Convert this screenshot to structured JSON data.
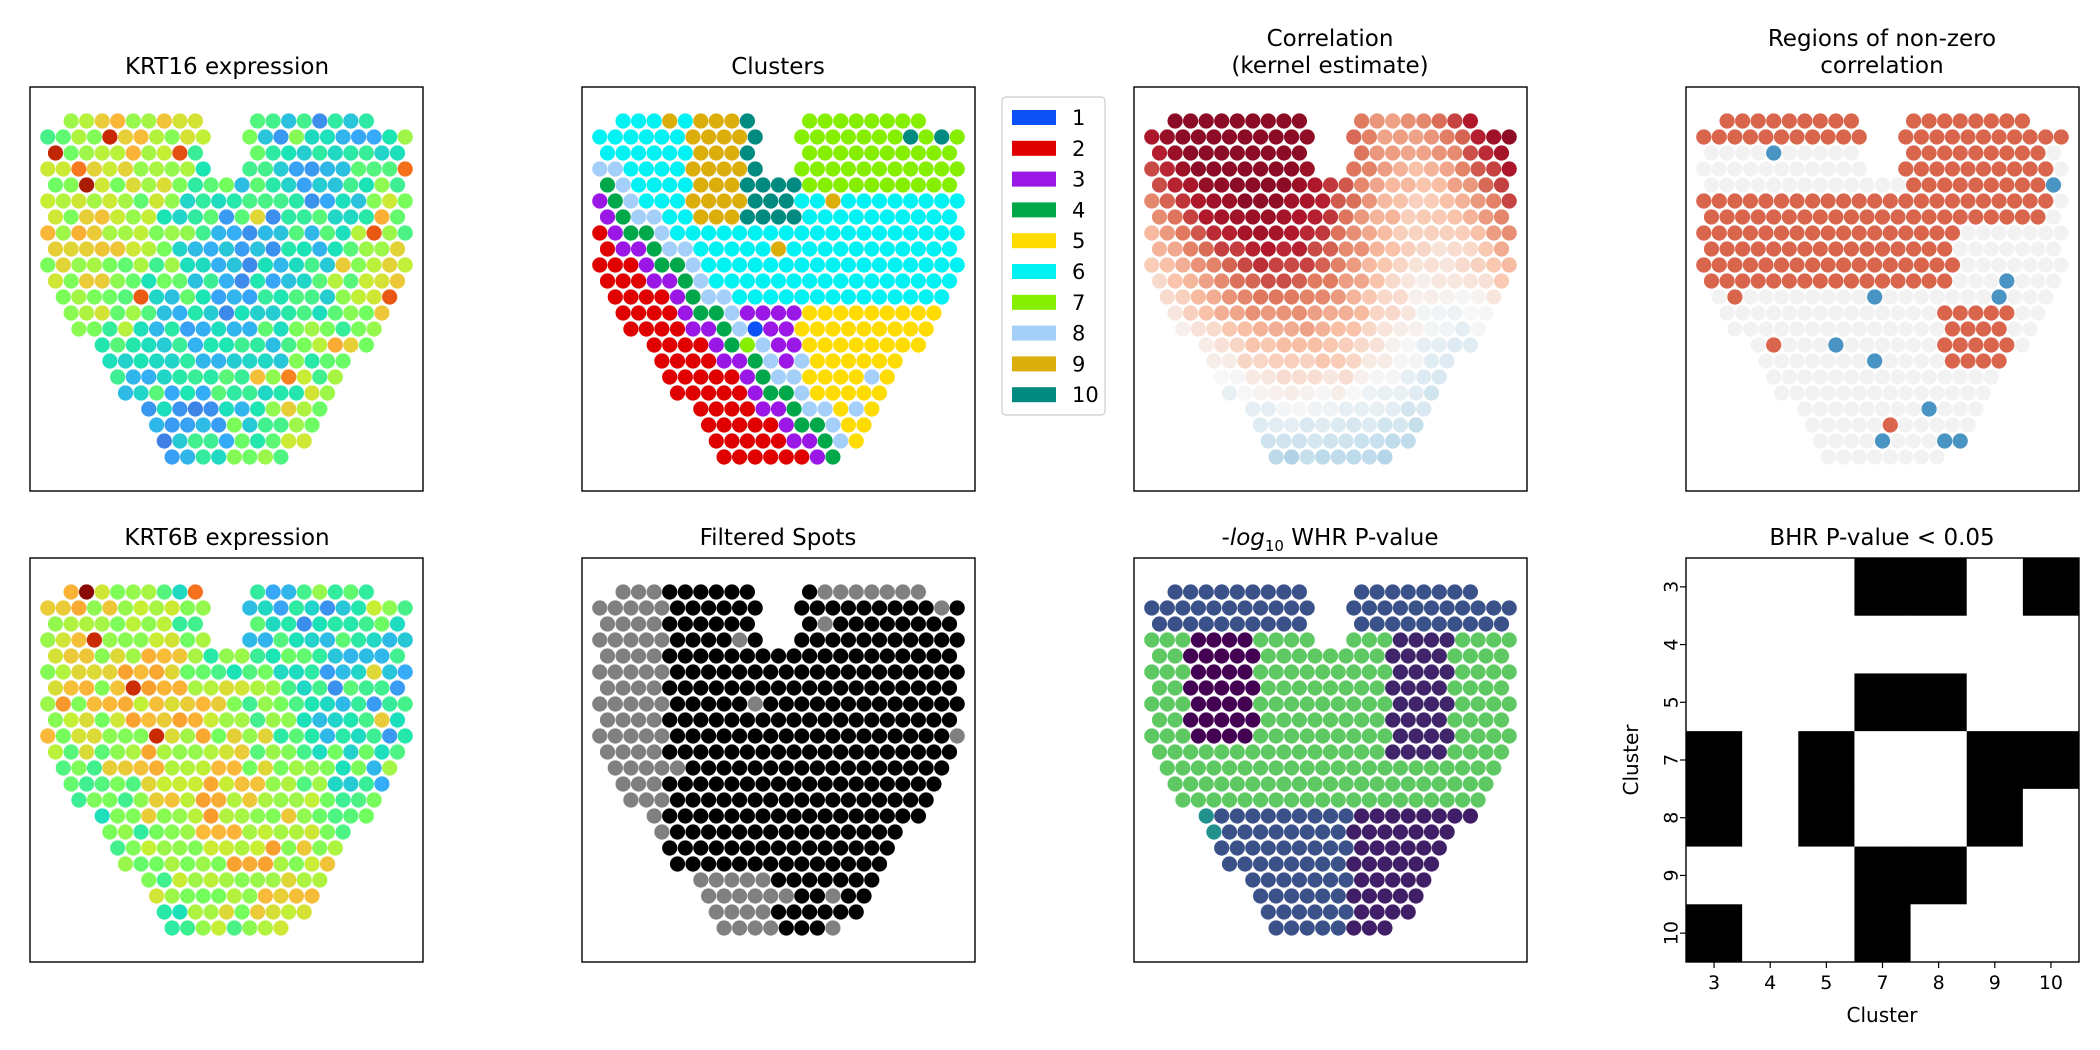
{
  "chart_data": [
    {
      "type": "scatter",
      "title": "KRT16 expression",
      "colormap": "turbo",
      "description_note": "spatial spot map, color = expression level (low=blue, high=red)"
    },
    {
      "type": "scatter",
      "title": "Clusters",
      "legend": {
        "placement": "right",
        "entries": [
          {
            "label": "1",
            "color": "#0b51f5"
          },
          {
            "label": "2",
            "color": "#e00000"
          },
          {
            "label": "3",
            "color": "#9a17e6"
          },
          {
            "label": "4",
            "color": "#00a84a"
          },
          {
            "label": "5",
            "color": "#ffdc00"
          },
          {
            "label": "6",
            "color": "#00f2f2"
          },
          {
            "label": "7",
            "color": "#86ef00"
          },
          {
            "label": "8",
            "color": "#a3cff9"
          },
          {
            "label": "9",
            "color": "#dcae0b"
          },
          {
            "label": "10",
            "color": "#008a80"
          }
        ]
      }
    },
    {
      "type": "scatter",
      "title_lines": [
        "Correlation",
        "(kernel estimate)"
      ],
      "colormap": "RdBu_r"
    },
    {
      "type": "scatter",
      "title_lines": [
        "Regions of non-zero",
        "correlation"
      ],
      "colors": {
        "positive": "#d9654c",
        "negative": "#4a94c4",
        "zero": "#f2f2f2"
      }
    },
    {
      "type": "scatter",
      "title": "KRT6B expression",
      "colormap": "turbo"
    },
    {
      "type": "scatter",
      "title": "Filtered Spots",
      "colors": {
        "kept": "#000000",
        "filtered": "#808080"
      }
    },
    {
      "type": "scatter",
      "title_parts": {
        "prefix": "-",
        "log": "log",
        "sub": "10",
        "suffix": " WHR P-value"
      },
      "colormap": "viridis"
    },
    {
      "type": "heatmap",
      "title": "BHR P-value < 0.05",
      "xlabel": "Cluster",
      "ylabel": "Cluster",
      "x_categories": [
        "3",
        "4",
        "5",
        "7",
        "8",
        "9",
        "10"
      ],
      "y_categories": [
        "3",
        "4",
        "5",
        "7",
        "8",
        "9",
        "10"
      ],
      "matrix": [
        [
          0,
          0,
          0,
          1,
          1,
          0,
          1
        ],
        [
          0,
          0,
          0,
          0,
          0,
          0,
          0
        ],
        [
          0,
          0,
          0,
          1,
          1,
          0,
          0
        ],
        [
          1,
          0,
          1,
          0,
          0,
          1,
          1
        ],
        [
          1,
          0,
          1,
          0,
          0,
          1,
          0
        ],
        [
          0,
          0,
          0,
          1,
          1,
          0,
          0
        ],
        [
          1,
          0,
          0,
          1,
          0,
          0,
          0
        ]
      ],
      "colors": {
        "true": "#000000",
        "false": "#ffffff"
      }
    }
  ]
}
